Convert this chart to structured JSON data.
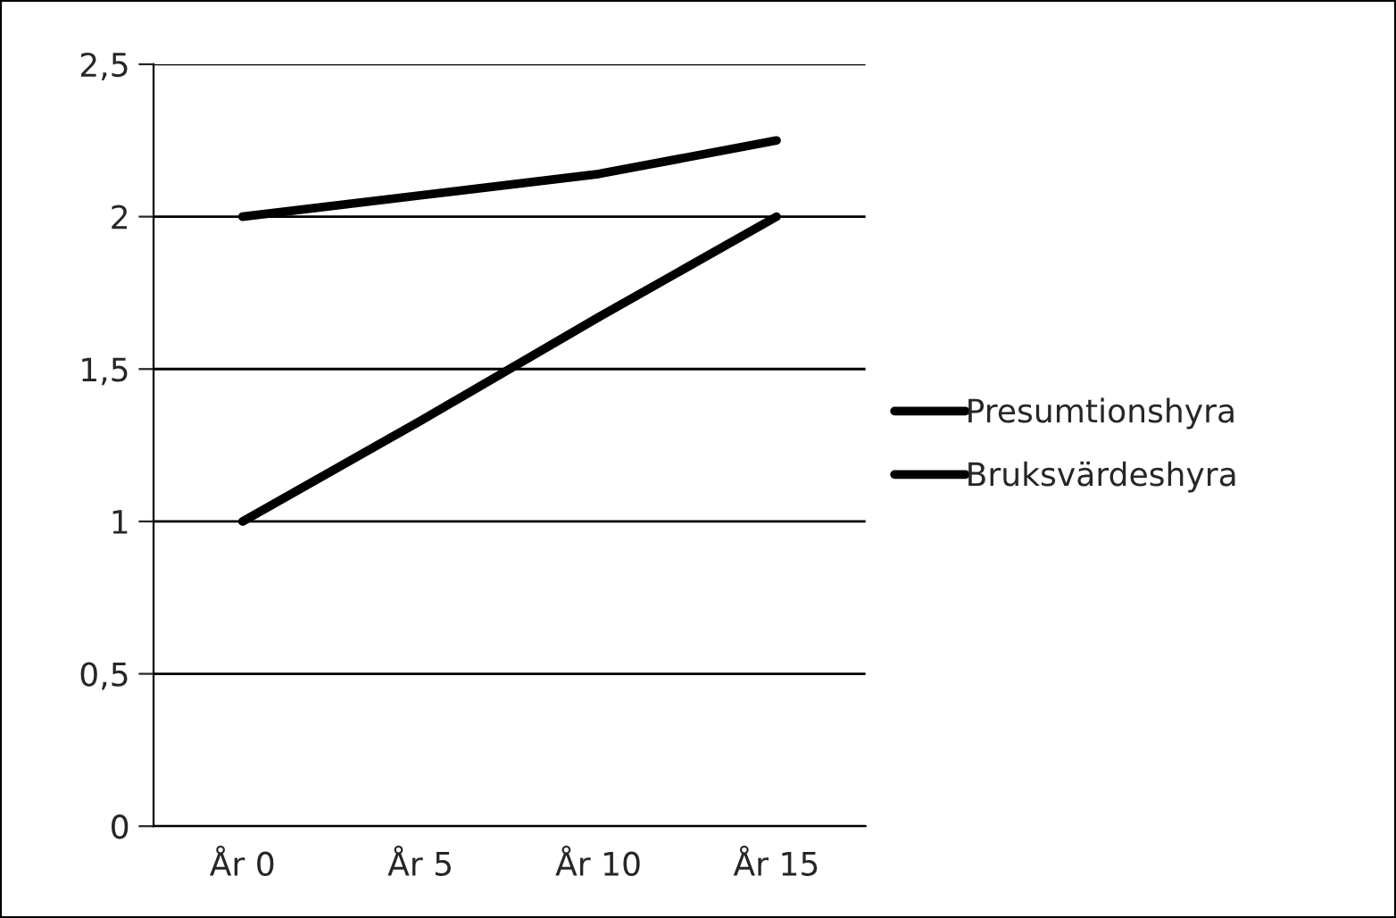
{
  "chart_data": {
    "type": "line",
    "categories": [
      "År 0",
      "År 5",
      "År 10",
      "År 15"
    ],
    "series": [
      {
        "name": "Presumtionshyra",
        "color": "#000000",
        "values": [
          2,
          2.07,
          2.14,
          2.25
        ]
      },
      {
        "name": "Bruksvärdeshyra",
        "color": "#000000",
        "values": [
          1,
          1.33,
          1.67,
          2
        ]
      }
    ],
    "ylim": [
      0,
      2.5
    ],
    "yticks": [
      0,
      {
        "value": 0.5,
        "label": "0,5"
      },
      1,
      {
        "value": 1.5,
        "label": "1,5"
      },
      2,
      {
        "value": 2.5,
        "label": "2,5"
      }
    ],
    "grid": "y",
    "legend": "right",
    "line_style": "solid",
    "marker": "none"
  }
}
